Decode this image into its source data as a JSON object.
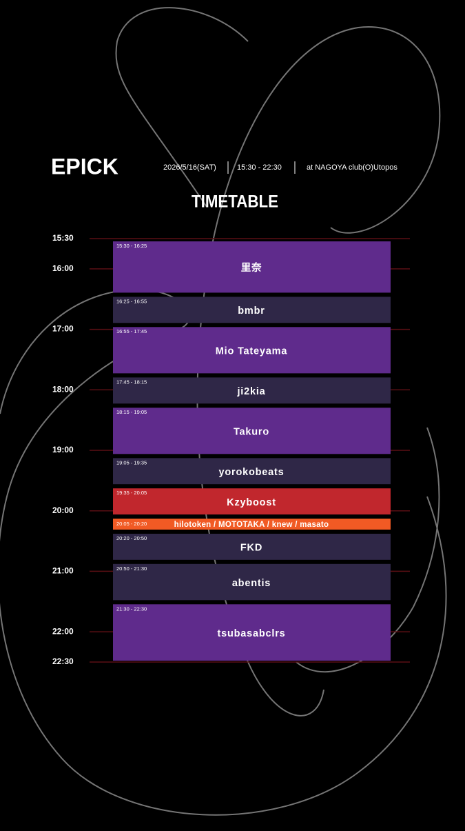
{
  "header": {
    "title": "EPICK",
    "date": "2026/5/16(SAT)",
    "hours": "15:30 - 22:30",
    "venue": "at NAGOYA club(O)Utopos"
  },
  "subtitle": "TIMETABLE",
  "times": [
    "15:30",
    "16:00",
    "17:00",
    "18:00",
    "19:00",
    "20:00",
    "21:00",
    "22:00",
    "22:30"
  ],
  "slots": [
    {
      "time": "15:30 - 16:25",
      "artist": "里奈",
      "color": "#5f2b8c"
    },
    {
      "time": "16:25 - 16:55",
      "artist": "bmbr",
      "color": "#2f2747"
    },
    {
      "time": "16:55 - 17:45",
      "artist": "Mio Tateyama",
      "color": "#5f2b8c"
    },
    {
      "time": "17:45 - 18:15",
      "artist": "ji2kia",
      "color": "#2f2747"
    },
    {
      "time": "18:15 - 19:05",
      "artist": "Takuro",
      "color": "#5f2b8c"
    },
    {
      "time": "19:05 - 19:35",
      "artist": "yorokobeats",
      "color": "#2f2747"
    },
    {
      "time": "19:35 - 20:05",
      "artist": "Kzyboost",
      "color": "#c1272d"
    },
    {
      "time": "20:05 - 20:20",
      "artist": "hilotoken / MOTOTAKA / knew / masato",
      "color": "#f15a24"
    },
    {
      "time": "20:20 - 20:50",
      "artist": "FKD",
      "color": "#2f2747"
    },
    {
      "time": "20:50 - 21:30",
      "artist": "abentis",
      "color": "#2f2747"
    },
    {
      "time": "21:30 - 22:30",
      "artist": "tsubasabclrs",
      "color": "#5f2b8c"
    }
  ]
}
